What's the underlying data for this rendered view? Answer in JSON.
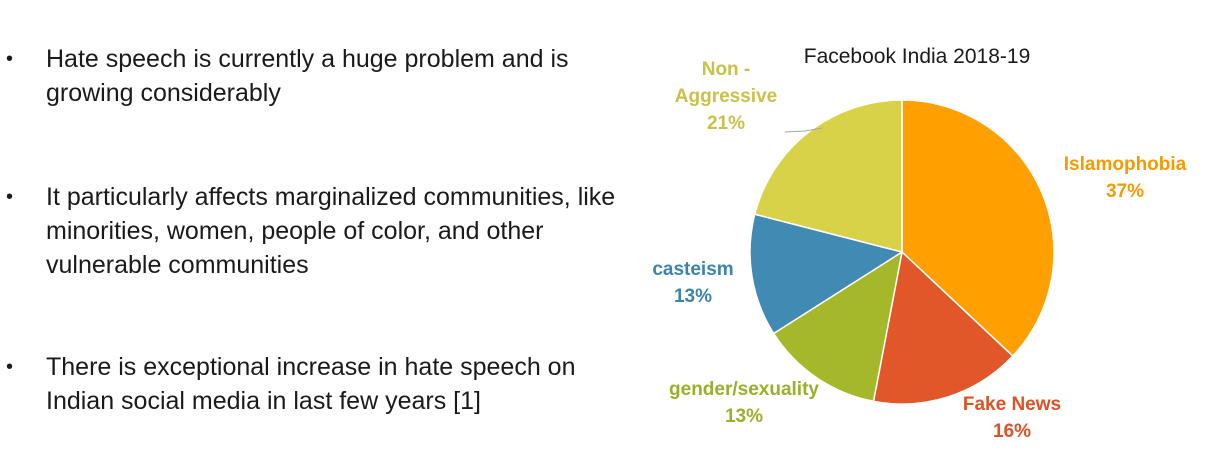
{
  "bullets": [
    {
      "text": "Hate speech is currently a huge problem and is growing considerably"
    },
    {
      "text": "It particularly affects marginalized communities, like minorities, women, people of color, and other vulnerable communities"
    },
    {
      "text": "There is exceptional increase in hate speech on Indian social media in last few years [1]"
    }
  ],
  "bullet_symbol": "•",
  "chart_data": {
    "type": "pie",
    "title": "Facebook India 2018-19",
    "start": "12 o'clock",
    "direction": "clockwise",
    "slices": [
      {
        "label": "Islamophobia",
        "value": 37,
        "value_label": "37%",
        "color": "#FF9F00"
      },
      {
        "label": "Fake News",
        "value": 16,
        "value_label": "16%",
        "color": "#E2572A"
      },
      {
        "label": "gender/sexuality",
        "value": 13,
        "value_label": "13%",
        "color": "#A5B82A"
      },
      {
        "label": "casteism",
        "value": 13,
        "value_label": "13%",
        "color": "#418AB3"
      },
      {
        "label": "Non - Aggressive",
        "value_label": "21%",
        "value": 21,
        "color": "#D8D248",
        "label_lines": [
          "Non -",
          "Aggressive"
        ]
      }
    ],
    "label_colors": {
      "Islamophobia": "#F39B00",
      "Fake News": "#DE5226",
      "gender/sexuality": "#9AAF2A",
      "casteism": "#3A84AE",
      "Non - Aggressive": "#C8C24A"
    }
  }
}
